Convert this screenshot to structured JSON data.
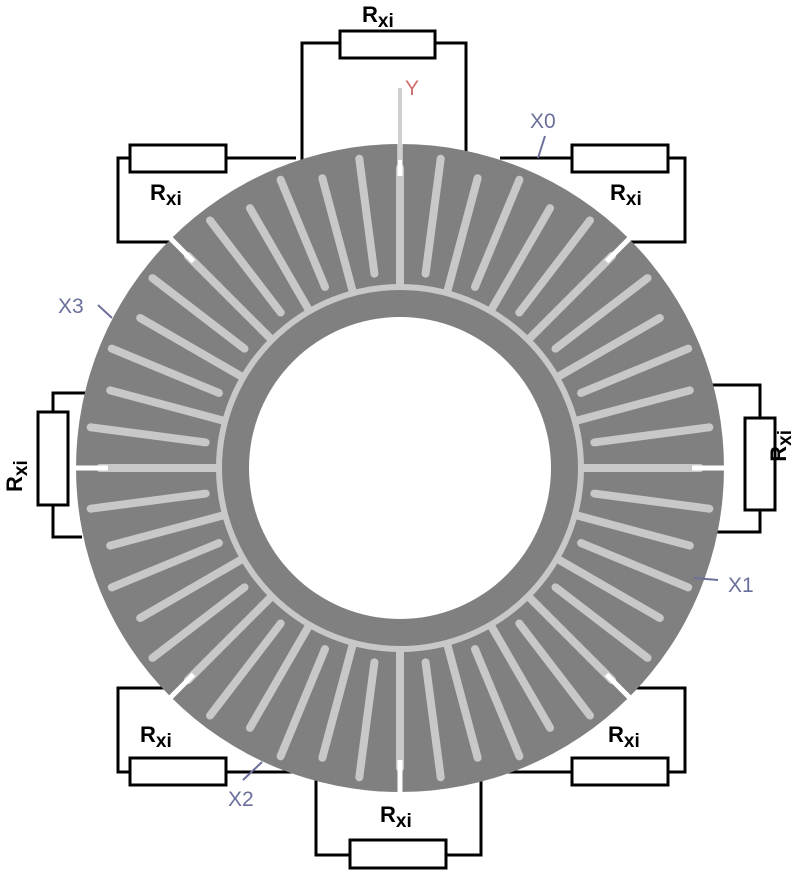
{
  "colors": {
    "ring": "#808080",
    "slot": "#c8c8c8",
    "wire": "#000000",
    "terminal_label": "#6b6f9c",
    "terminal_y": "#d07070"
  },
  "terminals": {
    "y": "Y",
    "x0": "X0",
    "x1": "X1",
    "x2": "X2",
    "x3": "X3"
  },
  "resistor": {
    "main": "R",
    "sub": "xi"
  }
}
